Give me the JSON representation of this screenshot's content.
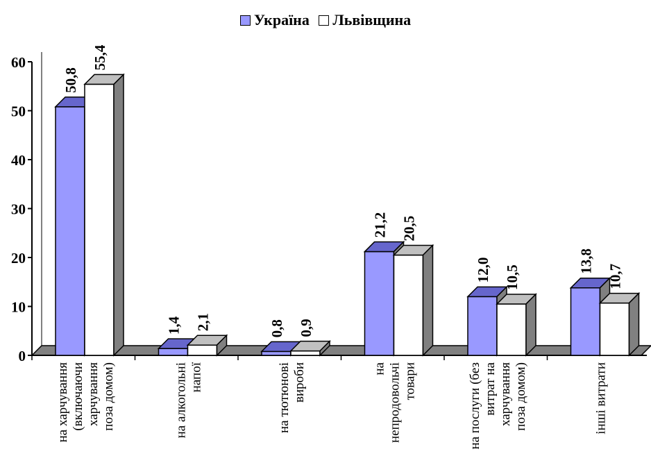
{
  "chart_data": {
    "type": "bar",
    "title": "",
    "xlabel": "",
    "ylabel": "",
    "ylim": [
      0,
      60
    ],
    "yticks": [
      0,
      10,
      20,
      30,
      40,
      50,
      60
    ],
    "grid": false,
    "legend_position": "top",
    "categories": [
      "на харчування (включаючи харчування поза домом)",
      "на алкогольні напої",
      "на тютюнові вироби",
      "на непродовольчі товари",
      "на послуги (без витрат на харчування поза домом)",
      "інші витрати"
    ],
    "category_lines": [
      [
        "на харчування",
        "(включаючи",
        "харчування",
        "поза домом)"
      ],
      [
        "на алкогольні",
        "напої"
      ],
      [
        "на тютюнові",
        "вироби"
      ],
      [
        "на",
        "непродовольчі",
        "товари"
      ],
      [
        "на послуги (без",
        "витрат на",
        "харчування",
        "поза домом)"
      ],
      [
        "інші витрати"
      ]
    ],
    "series": [
      {
        "name": "Україна",
        "color": "#9999ff",
        "values": [
          50.8,
          1.4,
          0.8,
          21.2,
          12.0,
          13.8
        ],
        "labels": [
          "50,8",
          "1,4",
          "0,8",
          "21,2",
          "12,0",
          "13,8"
        ]
      },
      {
        "name": "Львівщина",
        "color": "#ffffff",
        "values": [
          55.4,
          2.1,
          0.9,
          20.5,
          10.5,
          10.7
        ],
        "labels": [
          "55,4",
          "2,1",
          "0,9",
          "20,5",
          "10,5",
          "10,7"
        ]
      }
    ]
  }
}
